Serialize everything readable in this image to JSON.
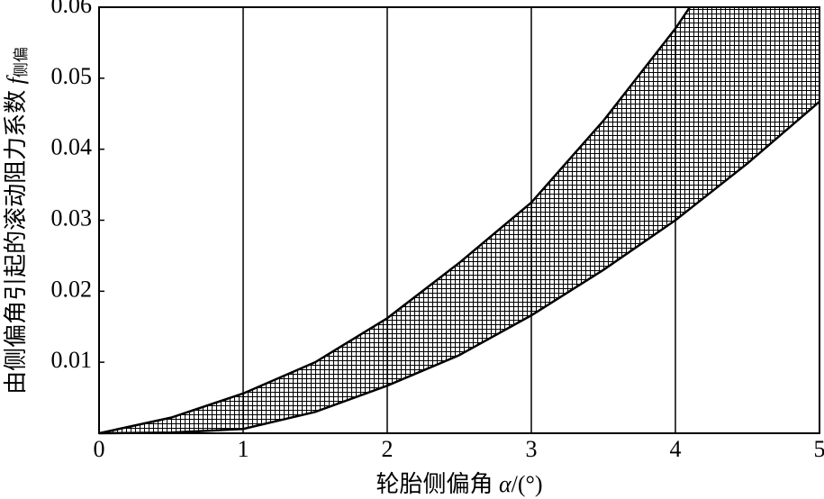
{
  "chart_data": {
    "type": "band",
    "xlabel": {
      "text": "轮胎侧偏角",
      "symbol": "α",
      "unit": "/(°)"
    },
    "ylabel": {
      "text": "由侧偏角引起的滚动阻力系数",
      "symbol": "f",
      "subscript": "侧偏"
    },
    "series": [
      {
        "x": [
          0,
          0.5,
          1,
          1.5,
          2,
          2.5,
          3,
          3.5,
          4,
          4.1
        ],
        "values": [
          0,
          0.0022,
          0.0056,
          0.01,
          0.0162,
          0.024,
          0.0325,
          0.044,
          0.057,
          0.06
        ],
        "color": "#000000"
      },
      {
        "x": [
          0,
          0.5,
          1,
          1.5,
          2,
          2.5,
          3,
          3.5,
          4,
          4.5,
          5
        ],
        "values": [
          0,
          0.0001,
          0.0006,
          0.003,
          0.0067,
          0.011,
          0.0166,
          0.023,
          0.03,
          0.038,
          0.0467
        ],
        "color": "#000000"
      }
    ],
    "xlim": [
      0,
      5
    ],
    "xticks": [
      0,
      1,
      2,
      3,
      4,
      5
    ],
    "ylim": [
      0,
      0.06
    ],
    "yticks": [
      0.01,
      0.02,
      0.03,
      0.04,
      0.05,
      0.06
    ],
    "grid": "x"
  }
}
